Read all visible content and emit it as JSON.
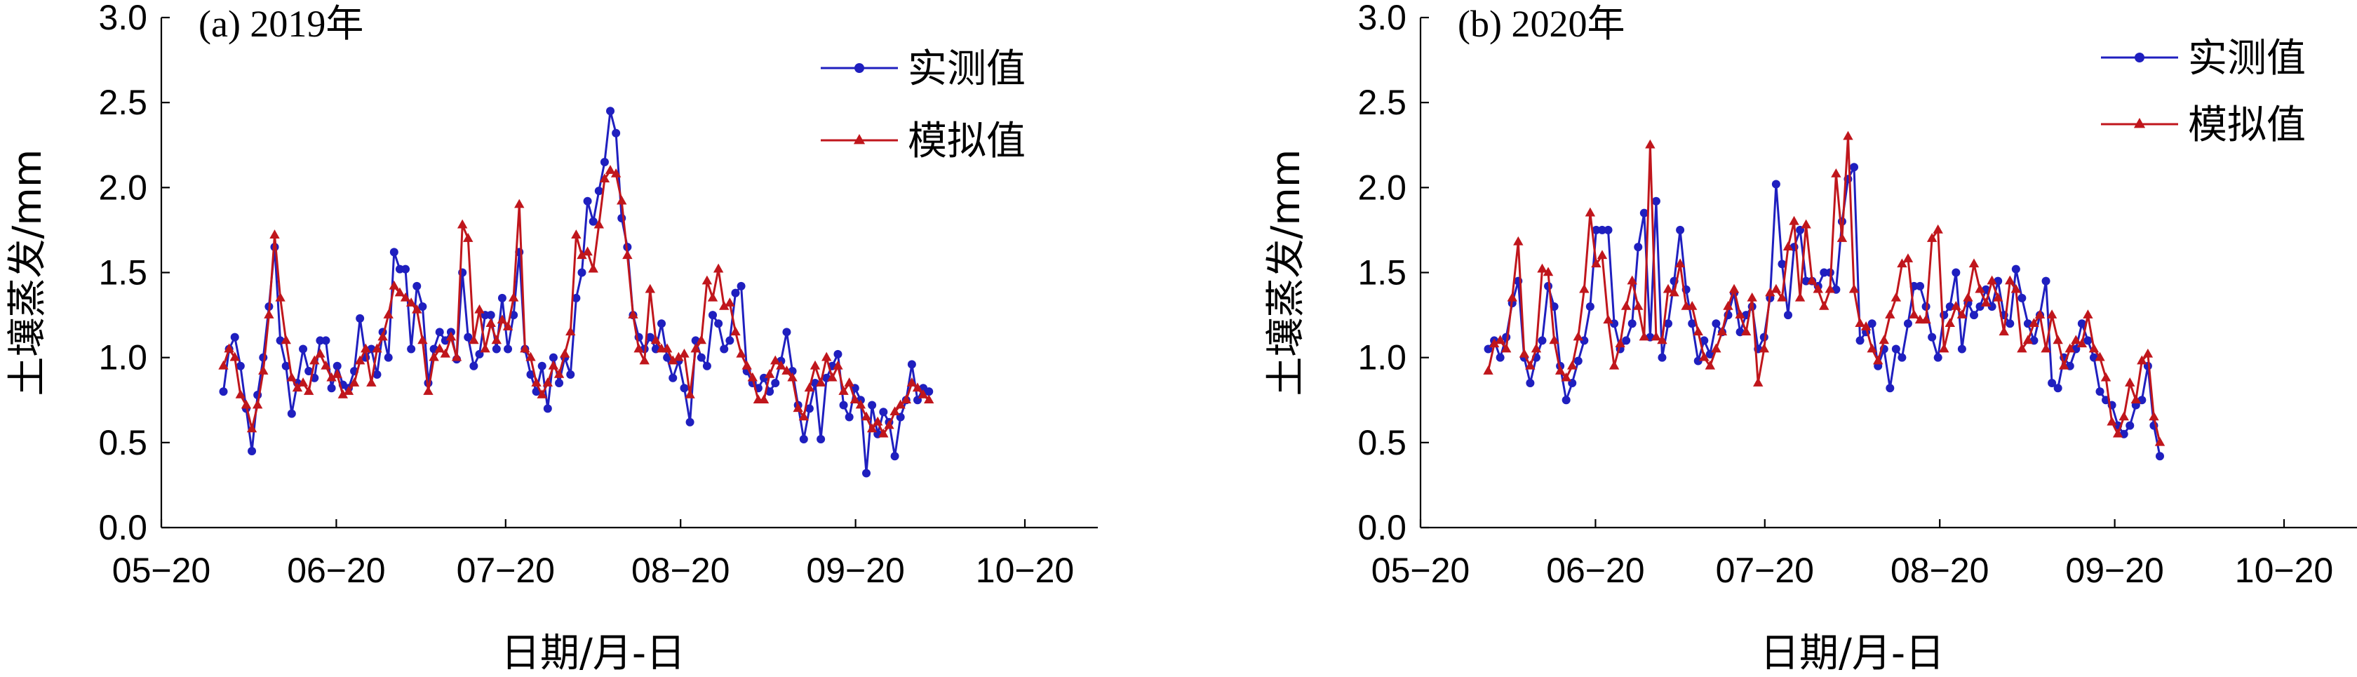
{
  "colors": {
    "measured": "#1f1fbf",
    "simulated": "#c0161c"
  },
  "chart_data": [
    {
      "type": "line",
      "title": "(a) 2019年",
      "xlabel": "日期/月-日",
      "ylabel": "土壤蒸发/mm",
      "ylim": [
        0.0,
        3.0
      ],
      "yticks": [
        "0.0",
        "0.5",
        "1.0",
        "1.5",
        "2.0",
        "2.5",
        "3.0"
      ],
      "xlim_days": [
        0,
        153
      ],
      "xticks": [
        {
          "day": 0,
          "label": "05−20"
        },
        {
          "day": 31,
          "label": "06−20"
        },
        {
          "day": 61,
          "label": "07−20"
        },
        {
          "day": 92,
          "label": "08−20"
        },
        {
          "day": 123,
          "label": "09−20"
        },
        {
          "day": 153,
          "label": "10−20"
        }
      ],
      "legend": "top-right",
      "x_start_day": 11,
      "series": [
        {
          "name": "实测值",
          "marker": "circle",
          "values": [
            0.8,
            1.05,
            1.12,
            0.95,
            0.7,
            0.45,
            0.78,
            1.0,
            1.3,
            1.65,
            1.1,
            0.95,
            0.67,
            0.85,
            1.05,
            0.92,
            0.88,
            1.1,
            1.1,
            0.82,
            0.95,
            0.84,
            0.82,
            0.92,
            1.23,
            1.0,
            1.05,
            0.9,
            1.15,
            1.0,
            1.62,
            1.52,
            1.52,
            1.05,
            1.42,
            1.3,
            0.85,
            1.05,
            1.15,
            1.1,
            1.15,
            0.99,
            1.5,
            1.12,
            0.95,
            1.02,
            1.25,
            1.25,
            1.05,
            1.35,
            1.05,
            1.25,
            1.62,
            1.05,
            0.9,
            0.8,
            0.95,
            0.7,
            1.0,
            0.85,
            1.0,
            0.9,
            1.35,
            1.5,
            1.92,
            1.8,
            1.98,
            2.15,
            2.45,
            2.32,
            1.82,
            1.65,
            1.25,
            1.12,
            1.05,
            1.12,
            1.05,
            1.2,
            1.0,
            0.88,
            0.98,
            0.82,
            0.62,
            1.1,
            1.0,
            0.95,
            1.25,
            1.2,
            1.05,
            1.1,
            1.38,
            1.42,
            0.92,
            0.85,
            0.82,
            0.88,
            0.8,
            0.85,
            0.98,
            1.15,
            0.92,
            0.72,
            0.52,
            0.7,
            0.85,
            0.52,
            0.88,
            0.95,
            1.02,
            0.72,
            0.65,
            0.82,
            0.75,
            0.32,
            0.72,
            0.55,
            0.68,
            0.62,
            0.42,
            0.65,
            0.75,
            0.96,
            0.75,
            0.82,
            0.8
          ]
        },
        {
          "name": "模拟值",
          "marker": "triangle",
          "values": [
            0.95,
            1.05,
            1.0,
            0.78,
            0.72,
            0.58,
            0.72,
            0.92,
            1.25,
            1.72,
            1.35,
            1.1,
            0.88,
            0.82,
            0.85,
            0.8,
            0.98,
            1.02,
            0.95,
            0.88,
            0.9,
            0.78,
            0.8,
            0.85,
            0.98,
            1.05,
            0.85,
            1.05,
            1.12,
            1.25,
            1.42,
            1.38,
            1.35,
            1.32,
            1.28,
            1.1,
            0.8,
            1.0,
            1.05,
            1.02,
            1.12,
            1.0,
            1.78,
            1.7,
            1.1,
            1.28,
            1.05,
            1.2,
            1.1,
            1.22,
            1.18,
            1.35,
            1.9,
            1.05,
            1.0,
            0.85,
            0.78,
            0.85,
            0.95,
            0.9,
            1.02,
            1.15,
            1.72,
            1.6,
            1.62,
            1.52,
            1.78,
            2.05,
            2.1,
            2.08,
            1.92,
            1.6,
            1.25,
            1.05,
            0.98,
            1.4,
            1.1,
            1.05,
            1.05,
            0.98,
            1.0,
            1.02,
            0.78,
            1.05,
            1.1,
            1.45,
            1.35,
            1.52,
            1.3,
            1.32,
            1.15,
            1.02,
            0.95,
            0.88,
            0.75,
            0.75,
            0.9,
            0.98,
            0.95,
            0.92,
            0.88,
            0.7,
            0.65,
            0.82,
            0.95,
            0.85,
            1.0,
            0.88,
            0.95,
            0.8,
            0.85,
            0.75,
            0.72,
            0.65,
            0.58,
            0.62,
            0.55,
            0.6,
            0.68,
            0.72,
            0.75,
            0.85,
            0.82,
            0.78,
            0.75
          ]
        }
      ]
    },
    {
      "type": "line",
      "title": "(b) 2020年",
      "xlabel": "日期/月-日",
      "ylabel": "土壤蒸发/mm",
      "ylim": [
        0.0,
        3.0
      ],
      "yticks": [
        "0.0",
        "0.5",
        "1.0",
        "1.5",
        "2.0",
        "2.5",
        "3.0"
      ],
      "xlim_days": [
        0,
        153
      ],
      "xticks": [
        {
          "day": 0,
          "label": "05−20"
        },
        {
          "day": 31,
          "label": "06−20"
        },
        {
          "day": 61,
          "label": "07−20"
        },
        {
          "day": 92,
          "label": "08−20"
        },
        {
          "day": 123,
          "label": "09−20"
        },
        {
          "day": 153,
          "label": "10−20"
        }
      ],
      "legend": "top-right",
      "x_start_day": 12,
      "series": [
        {
          "name": "实测值",
          "marker": "circle",
          "values": [
            1.05,
            1.1,
            1.0,
            1.12,
            1.32,
            1.45,
            1.0,
            0.85,
            1.0,
            1.1,
            1.42,
            1.3,
            0.95,
            0.75,
            0.85,
            0.98,
            1.1,
            1.3,
            1.75,
            1.75,
            1.75,
            1.2,
            1.05,
            1.1,
            1.2,
            1.65,
            1.85,
            1.12,
            1.92,
            1.0,
            1.2,
            1.45,
            1.75,
            1.4,
            1.2,
            0.98,
            1.1,
            1.02,
            1.2,
            1.15,
            1.25,
            1.38,
            1.15,
            1.25,
            1.3,
            1.05,
            1.12,
            1.35,
            2.02,
            1.55,
            1.25,
            1.65,
            1.75,
            1.45,
            1.45,
            1.42,
            1.5,
            1.5,
            1.4,
            1.8,
            2.05,
            2.12,
            1.1,
            1.15,
            1.2,
            0.95,
            1.05,
            0.82,
            1.05,
            1.0,
            1.2,
            1.42,
            1.42,
            1.3,
            1.12,
            1.0,
            1.25,
            1.3,
            1.5,
            1.05,
            1.32,
            1.25,
            1.3,
            1.4,
            1.3,
            1.45,
            1.25,
            1.2,
            1.52,
            1.35,
            1.2,
            1.1,
            1.25,
            1.45,
            0.85,
            0.82,
            1.0,
            0.95,
            1.05,
            1.2,
            1.1,
            1.0,
            0.8,
            0.75,
            0.72,
            0.6,
            0.55,
            0.6,
            0.72,
            0.75,
            0.95,
            0.6,
            0.42
          ]
        },
        {
          "name": "模拟值",
          "marker": "triangle",
          "values": [
            0.92,
            1.08,
            1.1,
            1.05,
            1.35,
            1.68,
            1.02,
            0.95,
            1.05,
            1.52,
            1.5,
            1.1,
            0.92,
            0.88,
            0.95,
            1.12,
            1.4,
            1.85,
            1.55,
            1.6,
            1.22,
            0.95,
            1.08,
            1.3,
            1.45,
            1.3,
            1.12,
            2.25,
            1.12,
            1.1,
            1.4,
            1.38,
            1.55,
            1.3,
            1.3,
            1.15,
            1.0,
            0.95,
            1.05,
            1.15,
            1.3,
            1.4,
            1.25,
            1.15,
            1.35,
            0.85,
            1.05,
            1.38,
            1.4,
            1.35,
            1.65,
            1.8,
            1.35,
            1.78,
            1.45,
            1.4,
            1.3,
            1.4,
            2.08,
            1.7,
            2.3,
            1.4,
            1.2,
            1.18,
            1.05,
            0.98,
            1.1,
            1.25,
            1.35,
            1.55,
            1.58,
            1.25,
            1.22,
            1.22,
            1.7,
            1.75,
            1.05,
            1.2,
            1.3,
            1.25,
            1.35,
            1.55,
            1.4,
            1.32,
            1.45,
            1.35,
            1.15,
            1.45,
            1.4,
            1.05,
            1.1,
            1.2,
            1.25,
            1.05,
            1.25,
            1.1,
            0.95,
            1.05,
            1.1,
            1.08,
            1.25,
            1.05,
            1.0,
            0.88,
            0.62,
            0.55,
            0.65,
            0.85,
            0.75,
            0.98,
            1.02,
            0.65,
            0.5
          ]
        }
      ]
    }
  ]
}
